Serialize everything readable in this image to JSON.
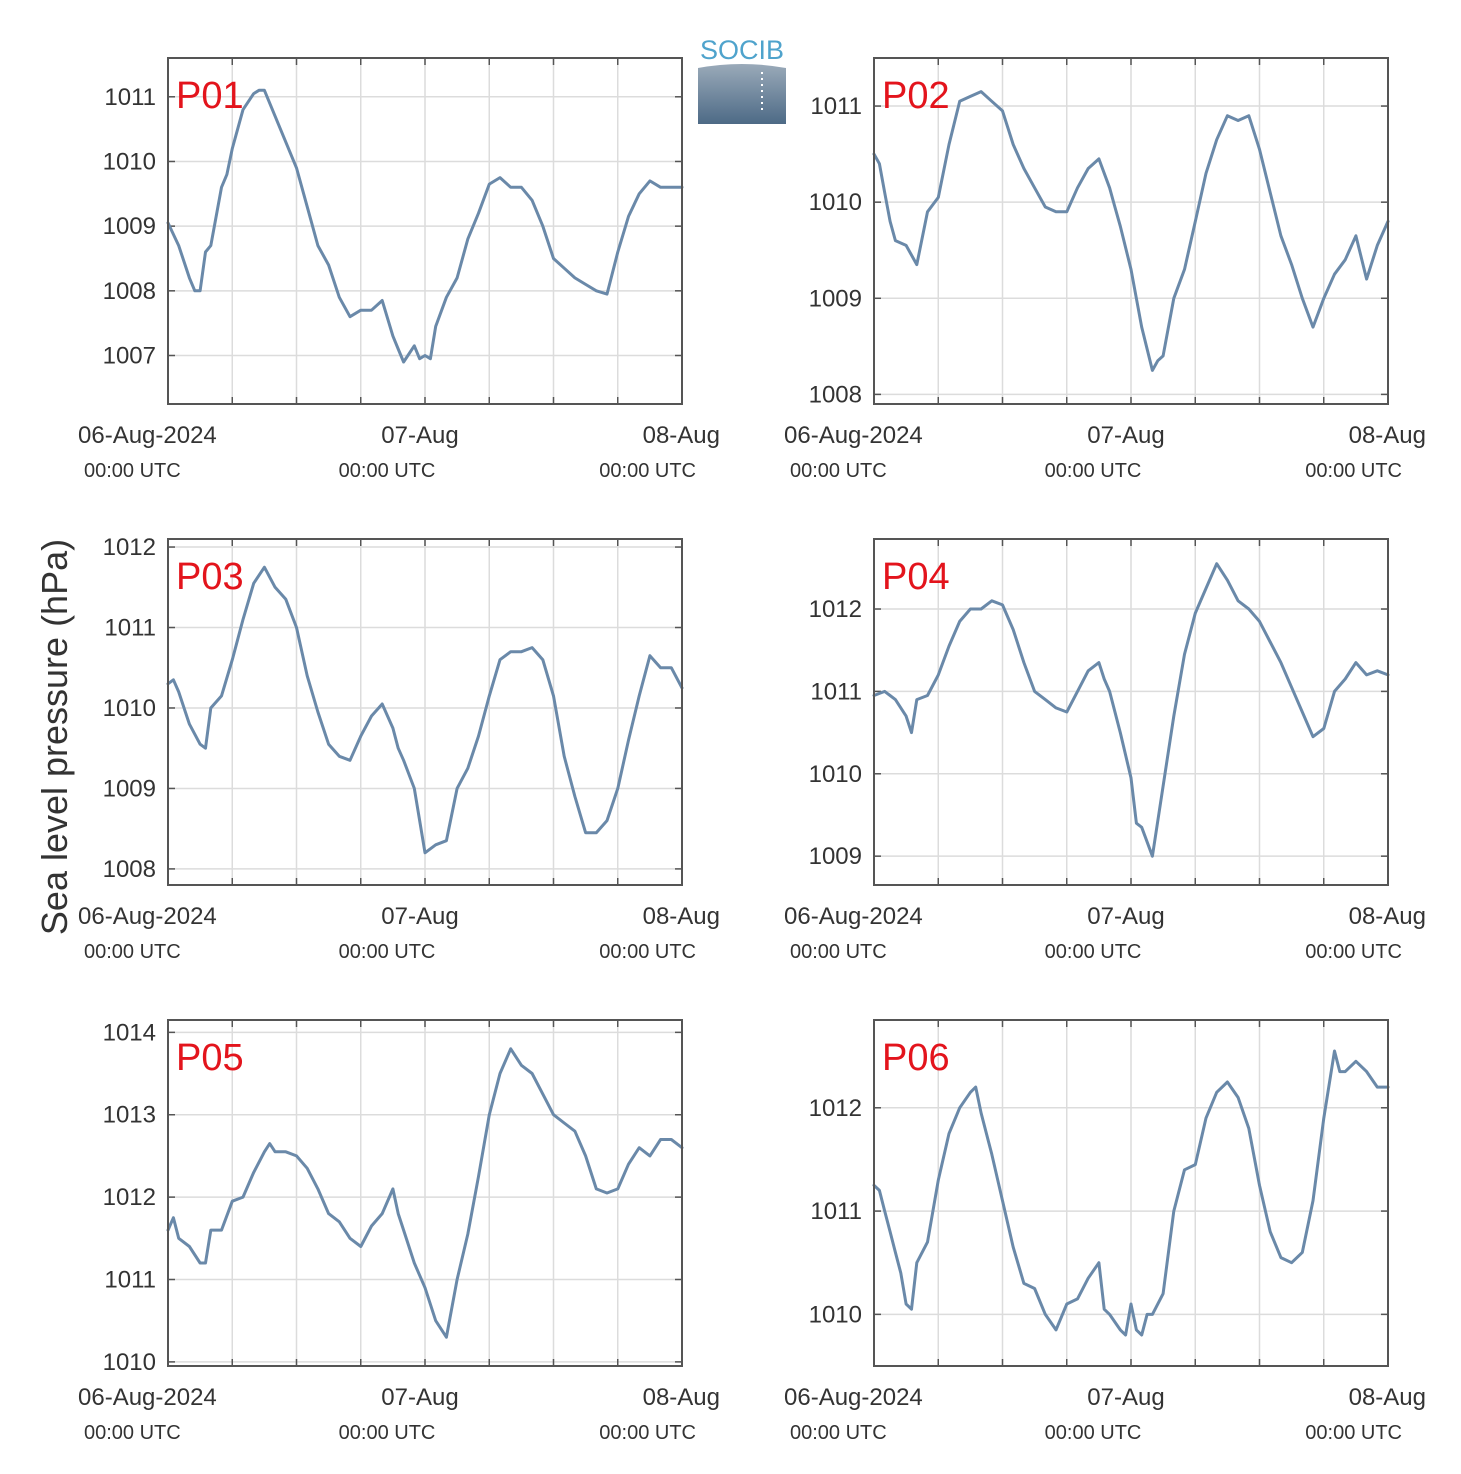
{
  "figure": {
    "ylabel": "Sea level pressure (hPa)",
    "logo": {
      "text": "SOCIB"
    },
    "colors": {
      "line": "#6a89a9",
      "panel_label": "#e3141c",
      "axis": "#555555",
      "grid": "#dcdcdc",
      "text": "#333333"
    },
    "x_ticks": [
      {
        "label": "06-Aug-2024",
        "sub": "00:00 UTC"
      },
      {
        "label": "07-Aug",
        "sub": "00:00 UTC"
      },
      {
        "label": "08-Aug",
        "sub": "00:00 UTC"
      }
    ]
  },
  "chart_data": [
    {
      "type": "line",
      "title": "P01",
      "xlim": [
        0,
        48
      ],
      "ylim": [
        1006.25,
        1011.6
      ],
      "yticks": [
        1007,
        1008,
        1009,
        1010,
        1011
      ],
      "x": [
        0,
        1,
        2,
        2.5,
        3,
        3.5,
        4,
        5,
        5.5,
        6,
        7,
        8,
        8.5,
        9,
        10,
        11,
        12,
        13,
        14,
        15,
        16,
        17,
        18,
        19,
        20,
        21,
        21.5,
        22,
        23,
        23.5,
        24,
        24.5,
        25,
        26,
        27,
        28,
        29,
        30,
        31,
        32,
        33,
        34,
        35,
        36,
        37,
        38,
        39,
        40,
        41,
        42,
        43,
        44,
        45,
        46,
        47,
        48
      ],
      "values": [
        1009.05,
        1008.7,
        1008.2,
        1008.0,
        1008.0,
        1008.6,
        1008.7,
        1009.6,
        1009.8,
        1010.2,
        1010.8,
        1011.05,
        1011.1,
        1011.1,
        1010.7,
        1010.3,
        1009.9,
        1009.3,
        1008.7,
        1008.4,
        1007.9,
        1007.6,
        1007.7,
        1007.7,
        1007.85,
        1007.3,
        1007.1,
        1006.9,
        1007.15,
        1006.95,
        1007.0,
        1006.95,
        1007.45,
        1007.9,
        1008.2,
        1008.8,
        1009.2,
        1009.65,
        1009.75,
        1009.6,
        1009.6,
        1009.4,
        1009.0,
        1008.5,
        1008.35,
        1008.2,
        1008.1,
        1008.0,
        1007.95,
        1008.6,
        1009.15,
        1009.5,
        1009.7,
        1009.6,
        1009.6,
        1009.6
      ]
    },
    {
      "type": "line",
      "title": "P02",
      "xlim": [
        0,
        48
      ],
      "ylim": [
        1007.9,
        1011.5
      ],
      "yticks": [
        1008,
        1009,
        1010,
        1011
      ],
      "x": [
        0,
        0.5,
        1,
        1.5,
        2,
        3,
        4,
        5,
        6,
        7,
        8,
        9,
        10,
        11,
        12,
        13,
        14,
        15,
        16,
        17,
        18,
        19,
        20,
        21,
        22,
        22.5,
        23,
        24,
        25,
        26,
        26.5,
        27,
        28,
        29,
        30,
        31,
        32,
        33,
        34,
        35,
        36,
        37,
        38,
        39,
        40,
        41,
        42,
        43,
        44,
        45,
        46,
        47,
        48
      ],
      "values": [
        1010.5,
        1010.4,
        1010.1,
        1009.8,
        1009.6,
        1009.55,
        1009.35,
        1009.9,
        1010.05,
        1010.6,
        1011.05,
        1011.1,
        1011.15,
        1011.05,
        1010.95,
        1010.6,
        1010.35,
        1010.15,
        1009.95,
        1009.9,
        1009.9,
        1010.15,
        1010.35,
        1010.45,
        1010.15,
        1009.95,
        1009.75,
        1009.3,
        1008.7,
        1008.25,
        1008.35,
        1008.4,
        1009.0,
        1009.3,
        1009.8,
        1010.3,
        1010.65,
        1010.9,
        1010.85,
        1010.9,
        1010.55,
        1010.1,
        1009.65,
        1009.35,
        1009.0,
        1008.7,
        1009.0,
        1009.25,
        1009.4,
        1009.65,
        1009.2,
        1009.55,
        1009.8
      ]
    },
    {
      "type": "line",
      "title": "P03",
      "xlim": [
        0,
        48
      ],
      "ylim": [
        1007.8,
        1012.1
      ],
      "yticks": [
        1008,
        1009,
        1010,
        1011,
        1012
      ],
      "x": [
        0,
        0.5,
        1,
        2,
        3,
        3.5,
        4,
        5,
        6,
        7,
        8,
        9,
        10,
        11,
        12,
        13,
        14,
        15,
        16,
        17,
        18,
        19,
        20,
        21,
        21.5,
        22,
        23,
        24,
        25,
        26,
        27,
        28,
        29,
        30,
        31,
        32,
        33,
        34,
        35,
        36,
        37,
        38,
        39,
        40,
        41,
        42,
        43,
        44,
        45,
        46,
        47,
        48
      ],
      "values": [
        1010.3,
        1010.35,
        1010.2,
        1009.8,
        1009.55,
        1009.5,
        1010.0,
        1010.15,
        1010.6,
        1011.1,
        1011.55,
        1011.75,
        1011.5,
        1011.35,
        1011.0,
        1010.4,
        1009.95,
        1009.55,
        1009.4,
        1009.35,
        1009.65,
        1009.9,
        1010.05,
        1009.75,
        1009.5,
        1009.35,
        1009.0,
        1008.2,
        1008.3,
        1008.35,
        1009.0,
        1009.25,
        1009.65,
        1010.15,
        1010.6,
        1010.7,
        1010.7,
        1010.75,
        1010.6,
        1010.15,
        1009.4,
        1008.9,
        1008.45,
        1008.45,
        1008.6,
        1009.0,
        1009.6,
        1010.15,
        1010.65,
        1010.5,
        1010.5,
        1010.25
      ]
    },
    {
      "type": "line",
      "title": "P04",
      "xlim": [
        0,
        48
      ],
      "ylim": [
        1008.65,
        1012.85
      ],
      "yticks": [
        1009,
        1010,
        1011,
        1012
      ],
      "x": [
        0,
        1,
        2,
        3,
        3.5,
        4,
        5,
        6,
        7,
        8,
        9,
        10,
        11,
        12,
        13,
        14,
        15,
        16,
        17,
        18,
        19,
        20,
        21,
        21.5,
        22,
        23,
        24,
        24.5,
        25,
        26,
        27,
        28,
        29,
        30,
        31,
        32,
        33,
        34,
        35,
        36,
        37,
        38,
        39,
        40,
        41,
        42,
        43,
        44,
        45,
        46,
        47,
        48
      ],
      "values": [
        1010.95,
        1011.0,
        1010.9,
        1010.7,
        1010.5,
        1010.9,
        1010.95,
        1011.2,
        1011.55,
        1011.85,
        1012.0,
        1012.0,
        1012.1,
        1012.05,
        1011.75,
        1011.35,
        1011.0,
        1010.9,
        1010.8,
        1010.75,
        1011.0,
        1011.25,
        1011.35,
        1011.15,
        1011.0,
        1010.5,
        1009.95,
        1009.4,
        1009.35,
        1009.0,
        1009.85,
        1010.7,
        1011.45,
        1011.95,
        1012.25,
        1012.55,
        1012.35,
        1012.1,
        1012.0,
        1011.85,
        1011.6,
        1011.35,
        1011.05,
        1010.75,
        1010.45,
        1010.55,
        1011.0,
        1011.15,
        1011.35,
        1011.2,
        1011.25,
        1011.2
      ]
    },
    {
      "type": "line",
      "title": "P05",
      "xlim": [
        0,
        48
      ],
      "ylim": [
        1009.95,
        1014.15
      ],
      "yticks": [
        1010,
        1011,
        1012,
        1013,
        1014
      ],
      "x": [
        0,
        0.5,
        1,
        2,
        3,
        3.5,
        4,
        5,
        6,
        7,
        8,
        9,
        9.5,
        10,
        11,
        12,
        13,
        14,
        15,
        16,
        17,
        18,
        19,
        20,
        21,
        21.5,
        22,
        23,
        24,
        25,
        26,
        27,
        28,
        29,
        30,
        31,
        32,
        33,
        34,
        35,
        36,
        37,
        38,
        39,
        40,
        41,
        42,
        43,
        44,
        45,
        46,
        47,
        48
      ],
      "values": [
        1011.6,
        1011.75,
        1011.5,
        1011.4,
        1011.2,
        1011.2,
        1011.6,
        1011.6,
        1011.95,
        1012.0,
        1012.3,
        1012.55,
        1012.65,
        1012.55,
        1012.55,
        1012.5,
        1012.35,
        1012.1,
        1011.8,
        1011.7,
        1011.5,
        1011.4,
        1011.65,
        1011.8,
        1012.1,
        1011.8,
        1011.6,
        1011.2,
        1010.9,
        1010.5,
        1010.3,
        1011.0,
        1011.55,
        1012.25,
        1013.0,
        1013.5,
        1013.8,
        1013.6,
        1013.5,
        1013.25,
        1013.0,
        1012.9,
        1012.8,
        1012.5,
        1012.1,
        1012.05,
        1012.1,
        1012.4,
        1012.6,
        1012.5,
        1012.7,
        1012.7,
        1012.6
      ]
    },
    {
      "type": "line",
      "title": "P06",
      "xlim": [
        0,
        48
      ],
      "ylim": [
        1009.5,
        1012.85
      ],
      "yticks": [
        1010,
        1011,
        1012
      ],
      "x": [
        0,
        0.5,
        1,
        1.5,
        2,
        2.5,
        3,
        3.5,
        4,
        5,
        6,
        7,
        8,
        9,
        9.5,
        10,
        11,
        12,
        13,
        14,
        15,
        16,
        17,
        18,
        19,
        20,
        21,
        21.5,
        22,
        23,
        23.5,
        24,
        24.5,
        25,
        25.5,
        26,
        27,
        28,
        29,
        30,
        31,
        32,
        33,
        34,
        35,
        36,
        37,
        38,
        39,
        40,
        41,
        42,
        43,
        43.5,
        44,
        45,
        46,
        47,
        48
      ],
      "values": [
        1011.25,
        1011.2,
        1011.0,
        1010.8,
        1010.6,
        1010.4,
        1010.1,
        1010.05,
        1010.5,
        1010.7,
        1011.3,
        1011.75,
        1012.0,
        1012.15,
        1012.2,
        1011.95,
        1011.55,
        1011.1,
        1010.65,
        1010.3,
        1010.25,
        1010.0,
        1009.85,
        1010.1,
        1010.15,
        1010.35,
        1010.5,
        1010.05,
        1010.0,
        1009.85,
        1009.8,
        1010.1,
        1009.85,
        1009.8,
        1010.0,
        1010.0,
        1010.2,
        1011.0,
        1011.4,
        1011.45,
        1011.9,
        1012.15,
        1012.25,
        1012.1,
        1011.8,
        1011.25,
        1010.8,
        1010.55,
        1010.5,
        1010.6,
        1011.1,
        1011.9,
        1012.55,
        1012.35,
        1012.35,
        1012.45,
        1012.35,
        1012.2,
        1012.2
      ]
    }
  ]
}
